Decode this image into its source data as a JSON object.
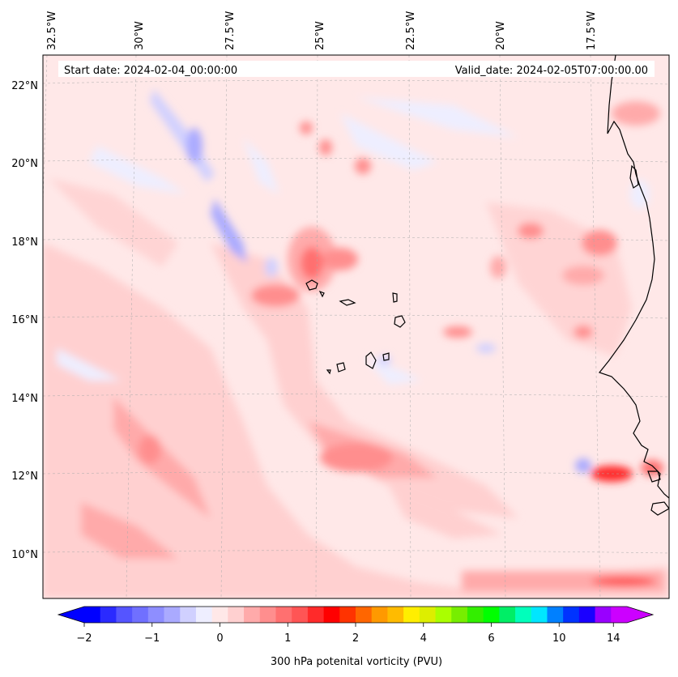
{
  "map": {
    "start_date": "Start date: 2024-02-04_00:00:00",
    "valid_date": "Valid_date: 2024-02-05T07:00:00.00",
    "lon_labels": [
      "32.5°W",
      "30°W",
      "27.5°W",
      "25°W",
      "22.5°W",
      "20°W",
      "17.5°W"
    ],
    "lat_labels": [
      "22°N",
      "20°N",
      "18°N",
      "16°N",
      "14°N",
      "12°N",
      "10°N"
    ],
    "background_color": "#ffe8e8"
  },
  "colorbar": {
    "label": "300 hPa potenital vorticity (PVU)",
    "tick_labels": [
      "−2",
      "−1",
      "0",
      "1",
      "2",
      "4",
      "6",
      "10",
      "14"
    ],
    "colors": [
      "#0000ff",
      "#2a2aff",
      "#5555ff",
      "#7070ff",
      "#8e8eff",
      "#aaaaff",
      "#d0d0ff",
      "#eeeeff",
      "#ffe8e8",
      "#ffd0d0",
      "#ffaaaa",
      "#ff8e8e",
      "#ff7070",
      "#ff5555",
      "#ff2a2a",
      "#ff0000",
      "#ff3300",
      "#ff6600",
      "#ff9900",
      "#ffbb00",
      "#ffee00",
      "#ddee00",
      "#aaff00",
      "#77ee00",
      "#33ee00",
      "#00ff00",
      "#00ee66",
      "#00ffbb",
      "#00e6ff",
      "#0080ff",
      "#0033ff",
      "#1a00ff",
      "#9900ff",
      "#cc00ff"
    ],
    "extend_min_color": "#0000ff",
    "extend_max_color": "#cc00ff"
  }
}
